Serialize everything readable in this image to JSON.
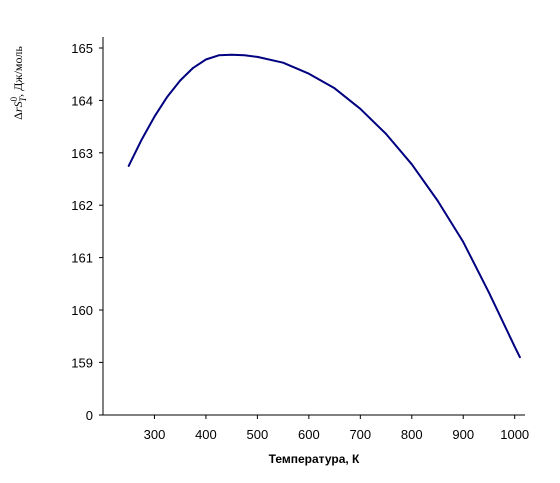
{
  "chart_data": {
    "type": "line",
    "title": "",
    "xlabel": "Температура, К",
    "ylabel": {
      "delta": "Δ",
      "r": "r",
      "S": "S",
      "sup": "0",
      "sub": "T",
      "unit": ", Дж/моль"
    },
    "x_ticks": [
      300,
      400,
      500,
      600,
      700,
      800,
      900,
      1000
    ],
    "y_ticks": [
      {
        "value": 0,
        "label": "0"
      },
      {
        "value": 159,
        "label": "159"
      },
      {
        "value": 160,
        "label": "160"
      },
      {
        "value": 161,
        "label": "161"
      },
      {
        "value": 162,
        "label": "162"
      },
      {
        "value": 163,
        "label": "163"
      },
      {
        "value": 164,
        "label": "164"
      },
      {
        "value": 165,
        "label": "165"
      }
    ],
    "y_axis_break": {
      "bottom_value": 0,
      "upper_from": 159
    },
    "xlim": [
      200,
      1020
    ],
    "ylim": [
      158,
      165.5
    ],
    "grid": false,
    "legend": "none",
    "series": [
      {
        "color": "#000080",
        "x": [
          250,
          275,
          300,
          325,
          350,
          375,
          400,
          425,
          450,
          475,
          500,
          550,
          600,
          650,
          700,
          750,
          800,
          850,
          900,
          950,
          1000,
          1010
        ],
        "y": [
          162.75,
          163.25,
          163.69,
          164.07,
          164.38,
          164.62,
          164.78,
          164.86,
          164.87,
          164.86,
          164.83,
          164.72,
          164.51,
          164.23,
          163.84,
          163.36,
          162.78,
          162.09,
          161.3,
          160.33,
          159.3,
          159.1
        ]
      }
    ]
  }
}
